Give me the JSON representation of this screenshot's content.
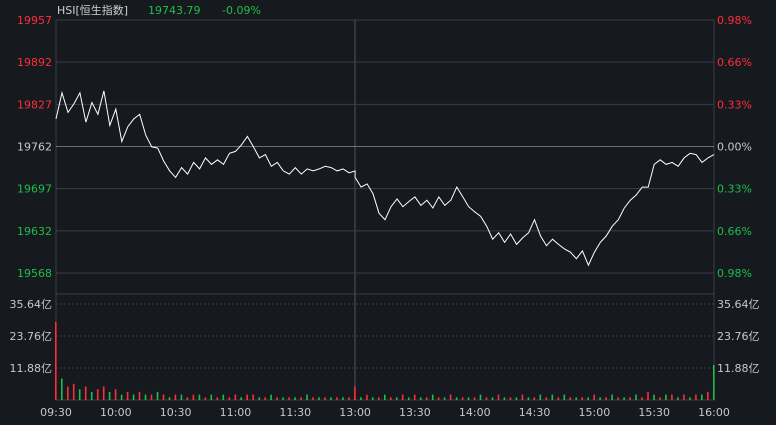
{
  "header": {
    "symbol": "HSI[恒生指数]",
    "last_price": "19743.79",
    "change_pct": "-0.09%"
  },
  "colors": {
    "background": "#16191e",
    "grid": "#3a3e45",
    "up": "#ff2d3c",
    "down": "#1fbe4b",
    "neutral": "#c8c8c8",
    "line": "#ffffff"
  },
  "chart_data": [
    {
      "type": "line",
      "name": "price",
      "prev_close": 19762,
      "ylim": [
        19568,
        19957
      ],
      "y_ticks_left": [
        "19957",
        "19892",
        "19827",
        "19762",
        "19697",
        "19632",
        "19568"
      ],
      "y_ticks_right": [
        "0.98%",
        "0.66%",
        "0.33%",
        "0.00%",
        "0.33%",
        "0.66%",
        "0.98%"
      ],
      "x_ticks": [
        "09:30",
        "10:00",
        "10:30",
        "11:00",
        "11:30",
        "13:00",
        "13:30",
        "14:00",
        "14:30",
        "15:00",
        "15:30",
        "16:00"
      ],
      "x": [
        "09:30",
        "09:33",
        "09:36",
        "09:39",
        "09:42",
        "09:45",
        "09:48",
        "09:51",
        "09:54",
        "09:57",
        "10:00",
        "10:03",
        "10:06",
        "10:09",
        "10:12",
        "10:15",
        "10:18",
        "10:21",
        "10:24",
        "10:27",
        "10:30",
        "10:33",
        "10:36",
        "10:39",
        "10:42",
        "10:45",
        "10:48",
        "10:51",
        "10:54",
        "10:57",
        "11:00",
        "11:03",
        "11:06",
        "11:09",
        "11:12",
        "11:15",
        "11:18",
        "11:21",
        "11:24",
        "11:27",
        "11:30",
        "11:33",
        "11:36",
        "11:39",
        "11:42",
        "11:45",
        "11:48",
        "11:51",
        "11:54",
        "11:57",
        "12:00",
        "13:00",
        "13:03",
        "13:06",
        "13:09",
        "13:12",
        "13:15",
        "13:18",
        "13:21",
        "13:24",
        "13:27",
        "13:30",
        "13:33",
        "13:36",
        "13:39",
        "13:42",
        "13:45",
        "13:48",
        "13:51",
        "13:54",
        "13:57",
        "14:00",
        "14:03",
        "14:06",
        "14:09",
        "14:12",
        "14:15",
        "14:18",
        "14:21",
        "14:24",
        "14:27",
        "14:30",
        "14:33",
        "14:36",
        "14:39",
        "14:42",
        "14:45",
        "14:48",
        "14:51",
        "14:54",
        "14:57",
        "15:00",
        "15:03",
        "15:06",
        "15:09",
        "15:12",
        "15:15",
        "15:18",
        "15:21",
        "15:24",
        "15:27",
        "15:30",
        "15:33",
        "15:36",
        "15:39",
        "15:42",
        "15:45",
        "15:48",
        "15:51",
        "15:54",
        "15:57",
        "16:00"
      ],
      "values": [
        19805,
        19845,
        19815,
        19828,
        19845,
        19800,
        19830,
        19812,
        19848,
        19795,
        19820,
        19770,
        19793,
        19805,
        19812,
        19780,
        19762,
        19760,
        19740,
        19725,
        19715,
        19730,
        19720,
        19738,
        19728,
        19745,
        19735,
        19742,
        19735,
        19752,
        19755,
        19765,
        19778,
        19762,
        19745,
        19750,
        19732,
        19738,
        19725,
        19720,
        19730,
        19720,
        19728,
        19725,
        19728,
        19732,
        19730,
        19725,
        19728,
        19722,
        19725,
        19715,
        19700,
        19705,
        19690,
        19660,
        19650,
        19670,
        19682,
        19670,
        19678,
        19685,
        19672,
        19680,
        19668,
        19685,
        19672,
        19680,
        19700,
        19685,
        19670,
        19662,
        19655,
        19640,
        19620,
        19630,
        19615,
        19628,
        19612,
        19622,
        19630,
        19650,
        19625,
        19610,
        19620,
        19612,
        19605,
        19600,
        19590,
        19602,
        19580,
        19600,
        19615,
        19625,
        19640,
        19650,
        19668,
        19680,
        19688,
        19700,
        19700,
        19735,
        19742,
        19735,
        19738,
        19732,
        19745,
        19752,
        19750,
        19738,
        19745,
        19750
      ],
      "line_color": "#ffffff"
    },
    {
      "type": "bar",
      "name": "volume",
      "y_ticks_left": [
        "35.64亿",
        "23.76亿",
        "11.88亿"
      ],
      "y_ticks_right": [
        "35.64亿",
        "23.76亿",
        "11.88亿"
      ],
      "ylim": [
        0,
        35.64
      ],
      "values": [
        29,
        8,
        5,
        6,
        4,
        5,
        3,
        4,
        5,
        3,
        4,
        2,
        3,
        2,
        3,
        2,
        2,
        3,
        2,
        1,
        2,
        2,
        1,
        2,
        2,
        1,
        2,
        1,
        2,
        1,
        2,
        1,
        2,
        2,
        1,
        1,
        2,
        1,
        1,
        1,
        1,
        1,
        2,
        1,
        1,
        1,
        1,
        1,
        1,
        1,
        1,
        5,
        1,
        2,
        1,
        1,
        2,
        1,
        1,
        2,
        1,
        2,
        1,
        1,
        2,
        1,
        1,
        2,
        1,
        1,
        1,
        1,
        2,
        1,
        1,
        2,
        1,
        1,
        1,
        2,
        1,
        1,
        2,
        1,
        2,
        1,
        2,
        1,
        1,
        1,
        1,
        2,
        1,
        1,
        2,
        1,
        1,
        1,
        2,
        1,
        3,
        2,
        1,
        2,
        2,
        1,
        2,
        1,
        2,
        2,
        3,
        13
      ],
      "bar_colors": [
        "up",
        "down",
        "up",
        "up",
        "down",
        "up",
        "down",
        "up",
        "up",
        "down",
        "up",
        "down",
        "up",
        "down",
        "up",
        "down",
        "up",
        "down",
        "up",
        "down",
        "up",
        "down",
        "up",
        "up",
        "down",
        "up",
        "down",
        "up",
        "down",
        "up",
        "up",
        "down",
        "up",
        "up",
        "down",
        "up",
        "down",
        "up",
        "down",
        "up",
        "down",
        "up",
        "down",
        "up",
        "down",
        "up",
        "down",
        "up",
        "down",
        "up",
        "down",
        "up",
        "down",
        "up",
        "down",
        "up",
        "down",
        "up",
        "down",
        "up",
        "down",
        "up",
        "down",
        "up",
        "down",
        "up",
        "down",
        "up",
        "down",
        "up",
        "down",
        "up",
        "down",
        "up",
        "down",
        "up",
        "down",
        "up",
        "down",
        "up",
        "down",
        "up",
        "down",
        "up",
        "down",
        "up",
        "down",
        "up",
        "down",
        "up",
        "down",
        "up",
        "down",
        "up",
        "down",
        "up",
        "down",
        "up",
        "down",
        "up",
        "up",
        "down",
        "up",
        "down",
        "up",
        "down",
        "up",
        "down",
        "up",
        "down",
        "up",
        "down"
      ]
    }
  ]
}
